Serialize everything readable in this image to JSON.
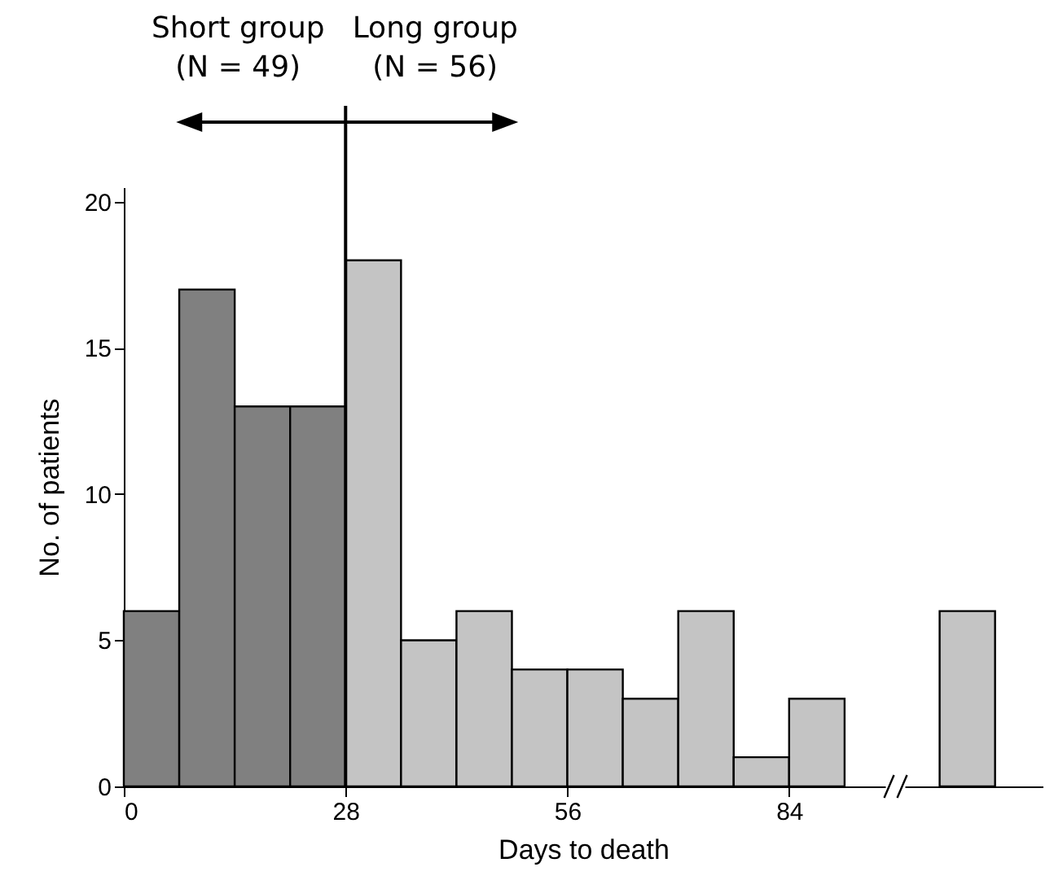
{
  "chart_data": {
    "type": "histogram",
    "xlabel": "Days to death",
    "ylabel": "No. of patients",
    "bins": [
      0,
      7,
      14,
      21,
      28,
      35,
      42,
      49,
      56,
      63,
      70,
      77,
      84,
      91,
      103,
      110
    ],
    "values": [
      6,
      17,
      13,
      13,
      18,
      5,
      6,
      4,
      4,
      3,
      6,
      1,
      3,
      null,
      6
    ],
    "colors": [
      "#808080",
      "#808080",
      "#808080",
      "#808080",
      "#c4c4c4",
      "#c4c4c4",
      "#c4c4c4",
      "#c4c4c4",
      "#c4c4c4",
      "#c4c4c4",
      "#c4c4c4",
      "#c4c4c4",
      "#c4c4c4",
      null,
      "#c4c4c4"
    ],
    "xlim": [
      0,
      116
    ],
    "xticks": [
      0,
      28,
      56,
      84
    ],
    "ylim": [
      0,
      20.5
    ],
    "yticks": [
      0,
      5,
      10,
      15,
      20
    ],
    "grid": false,
    "ref_lines": [
      {
        "axis": "x",
        "value": 28,
        "color": "#000000"
      }
    ],
    "annotations": [
      "Short group\n(N = 49)",
      "Long group\n(N = 56)"
    ]
  }
}
